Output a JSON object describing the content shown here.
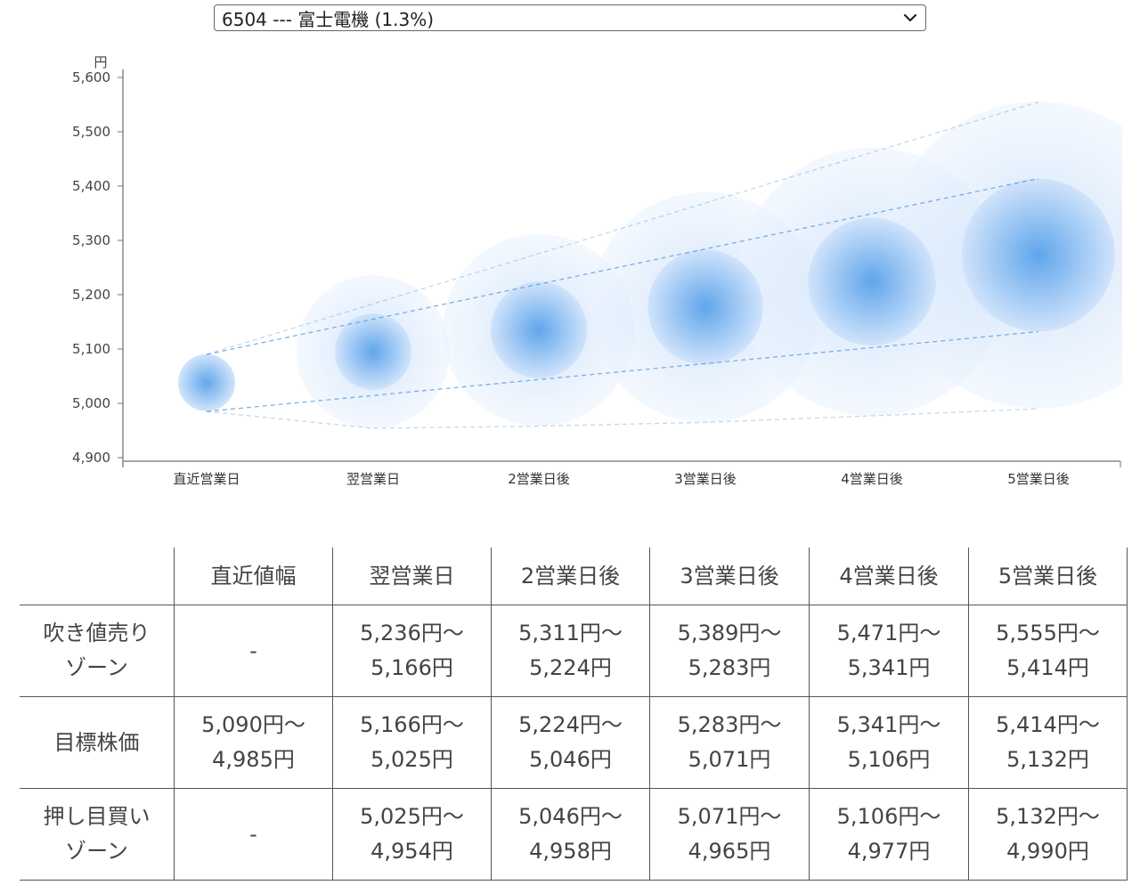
{
  "selector": {
    "selected": "6504 --- 富士電機 (1.3%)"
  },
  "chart_data": {
    "type": "bubble-forecast",
    "y_unit": "円",
    "ylim": [
      4900,
      5600
    ],
    "y_ticks": [
      "4,900",
      "5,000",
      "5,100",
      "5,200",
      "5,300",
      "5,400",
      "5,500",
      "5,600"
    ],
    "y_tick_values": [
      4900,
      5000,
      5100,
      5200,
      5300,
      5400,
      5500,
      5600
    ],
    "categories": [
      "直近営業日",
      "翌営業日",
      "2営業日後",
      "3営業日後",
      "4営業日後",
      "5営業日後"
    ],
    "center": [
      5038,
      5095,
      5135,
      5177,
      5224,
      5273
    ],
    "target_high": [
      5090,
      5166,
      5224,
      5283,
      5341,
      5414
    ],
    "target_low": [
      4985,
      5025,
      5046,
      5071,
      5106,
      5132
    ],
    "outer_high": [
      5090,
      5236,
      5311,
      5389,
      5471,
      5555
    ],
    "outer_low": [
      4985,
      4954,
      4958,
      4965,
      4977,
      4990
    ],
    "grid": false,
    "colors": {
      "bubble": "#5aa2ea",
      "line": "#4a90d9"
    }
  },
  "table": {
    "headers": [
      "",
      "直近値幅",
      "翌営業日",
      "2営業日後",
      "3営業日後",
      "4営業日後",
      "5営業日後"
    ],
    "rows": [
      {
        "label": [
          "吹き値売り",
          "ゾーン"
        ],
        "cells": [
          [
            "-"
          ],
          [
            "5,236円〜",
            "5,166円"
          ],
          [
            "5,311円〜",
            "5,224円"
          ],
          [
            "5,389円〜",
            "5,283円"
          ],
          [
            "5,471円〜",
            "5,341円"
          ],
          [
            "5,555円〜",
            "5,414円"
          ]
        ]
      },
      {
        "label": [
          "目標株価"
        ],
        "cells": [
          [
            "5,090円〜",
            "4,985円"
          ],
          [
            "5,166円〜",
            "5,025円"
          ],
          [
            "5,224円〜",
            "5,046円"
          ],
          [
            "5,283円〜",
            "5,071円"
          ],
          [
            "5,341円〜",
            "5,106円"
          ],
          [
            "5,414円〜",
            "5,132円"
          ]
        ]
      },
      {
        "label": [
          "押し目買い",
          "ゾーン"
        ],
        "cells": [
          [
            "-"
          ],
          [
            "5,025円〜",
            "4,954円"
          ],
          [
            "5,046円〜",
            "4,958円"
          ],
          [
            "5,071円〜",
            "4,965円"
          ],
          [
            "5,106円〜",
            "4,977円"
          ],
          [
            "5,132円〜",
            "4,990円"
          ]
        ]
      }
    ]
  }
}
